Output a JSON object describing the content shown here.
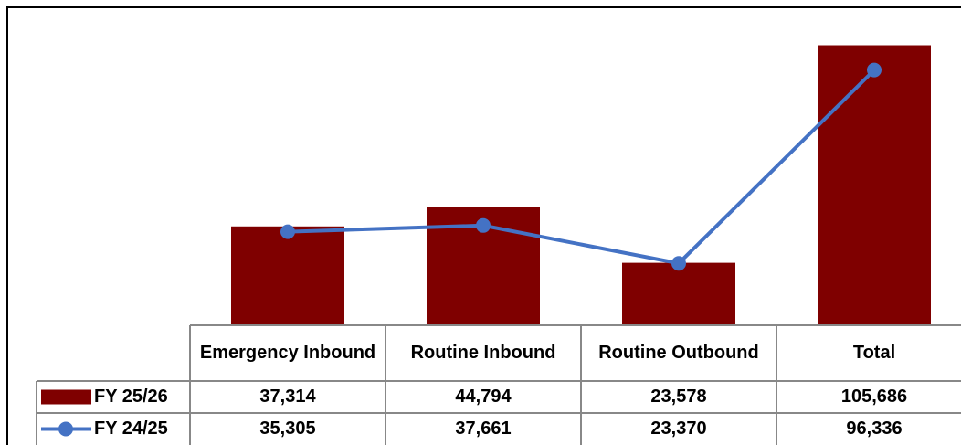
{
  "chart_data": {
    "type": "bar",
    "categories": [
      "Emergency Inbound",
      "Routine Inbound",
      "Routine Outbound",
      "Total"
    ],
    "series": [
      {
        "name": "FY 25/26",
        "type": "bar",
        "color": "#7f0000",
        "values": [
          37314,
          44794,
          23578,
          105686
        ],
        "value_labels": [
          "37,314",
          "44,794",
          "23,578",
          "105,686"
        ]
      },
      {
        "name": "FY 24/25",
        "type": "line",
        "color": "#4472c4",
        "values": [
          35305,
          37661,
          23370,
          96336
        ],
        "value_labels": [
          "35,305",
          "37,661",
          "23,370",
          "96,336"
        ]
      }
    ],
    "ylim": [
      0,
      120000
    ]
  }
}
